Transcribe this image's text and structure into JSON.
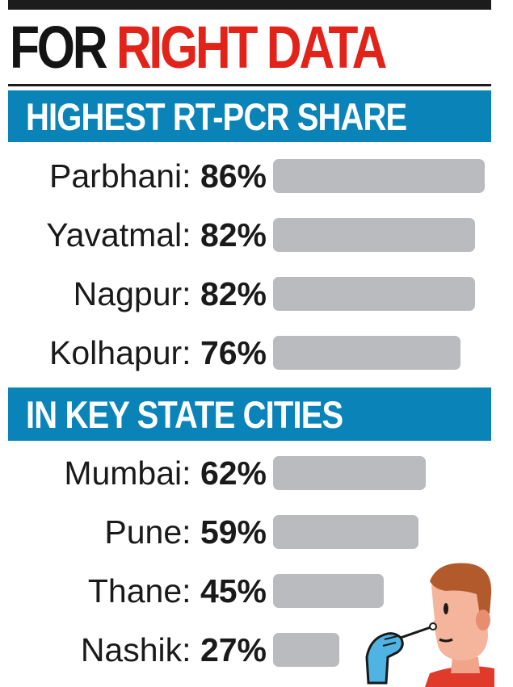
{
  "title": {
    "part1": "FOR",
    "part2": "RIGHT DATA"
  },
  "chart_data": [
    {
      "type": "bar",
      "orientation": "horizontal",
      "title": "HIGHEST RT-PCR SHARE",
      "unit": "%",
      "categories": [
        "Parbhani",
        "Yavatmal",
        "Nagpur",
        "Kolhapur"
      ],
      "values": [
        86,
        82,
        82,
        76
      ],
      "labels": [
        "Parbhani:",
        "Yavatmal:",
        "Nagpur:",
        "Kolhapur:"
      ],
      "value_labels": [
        "86%",
        "82%",
        "82%",
        "76%"
      ]
    },
    {
      "type": "bar",
      "orientation": "horizontal",
      "title": "IN KEY STATE CITIES",
      "unit": "%",
      "categories": [
        "Mumbai",
        "Pune",
        "Thane",
        "Nashik"
      ],
      "values": [
        62,
        59,
        45,
        27
      ],
      "labels": [
        "Mumbai:",
        "Pune:",
        "Thane:",
        "Nashik:"
      ],
      "value_labels": [
        "62%",
        "59%",
        "45%",
        "27%"
      ]
    }
  ],
  "colors": {
    "title_dark": "#141414",
    "title_red": "#e2231a",
    "header_blue": "#0a84b8",
    "bar_gray": "#b9bbbe"
  },
  "illustration": {
    "icon": "swab-test-person-icon"
  }
}
